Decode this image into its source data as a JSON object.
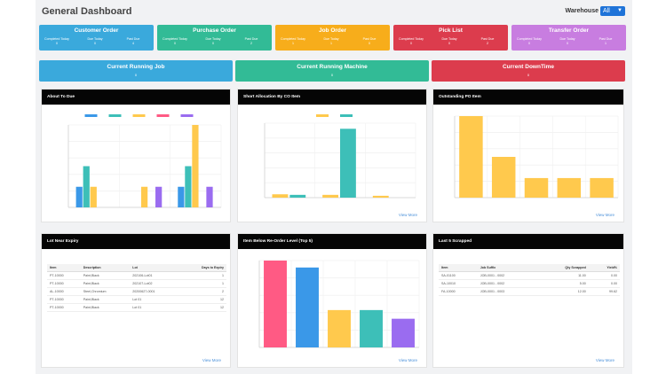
{
  "header": {
    "title": "General Dashboard",
    "warehouse_label": "Warehouse",
    "warehouse_value": "All"
  },
  "stat_cards": [
    {
      "title": "Customer Order",
      "color": "#3aa9dc",
      "subs": [
        "Completed Today",
        "Due Today",
        "Past Due"
      ],
      "values": [
        "0",
        "0",
        "4"
      ]
    },
    {
      "title": "Purchase Order",
      "color": "#32bb96",
      "subs": [
        "Completed Today",
        "Due Today",
        "Past Due"
      ],
      "values": [
        "0",
        "0",
        "2"
      ]
    },
    {
      "title": "Job Order",
      "color": "#f7ad1b",
      "subs": [
        "Completed Today",
        "Due Today",
        "Past Due"
      ],
      "values": [
        "1",
        "1",
        "0"
      ]
    },
    {
      "title": "Pick List",
      "color": "#dc3c4d",
      "subs": [
        "Completed Today",
        "Due Today",
        "Past Due"
      ],
      "values": [
        "0",
        "0",
        "2"
      ]
    },
    {
      "title": "Transfer Order",
      "color": "#c87de0",
      "subs": [
        "Completed Today",
        "Due Today",
        "Past Due"
      ],
      "values": [
        "0",
        "0",
        "1"
      ]
    }
  ],
  "running": [
    {
      "title": "Current Running Job",
      "value": "0",
      "color": "#3aa9dc"
    },
    {
      "title": "Current Running Machine",
      "value": "0",
      "color": "#32bb96"
    },
    {
      "title": "Current DownTime",
      "value": "0",
      "color": "#dc3c4d"
    }
  ],
  "panels": {
    "about_to_due": {
      "title": "About To Due"
    },
    "short_alloc": {
      "title": "Short Allocation By CO Item",
      "view_more": "View More"
    },
    "outstanding_po": {
      "title": "Outstanding PO Item",
      "view_more": "View More"
    },
    "lot_expiry": {
      "title": "Lot Near Expiry",
      "view_more": "View More"
    },
    "reorder": {
      "title": "Item Below Re-Order Level (Top 5)",
      "view_more": "View More"
    },
    "scrapped": {
      "title": "Last 5 Scrapped",
      "view_more": "View More"
    }
  },
  "lot_table": {
    "headers": [
      "Item",
      "Description",
      "Lot",
      "Days to Expiry"
    ],
    "rows": [
      [
        "PT-10000",
        "Paint,Black",
        "202106-Lot01",
        "1"
      ],
      [
        "PT-10000",
        "Paint,Black",
        "202107-Lot02",
        "1"
      ],
      [
        "AL-10000",
        "Steel,Chromium",
        "20200627-0001",
        "2"
      ],
      [
        "PT-10000",
        "Paint,Black",
        "Lot 01",
        "12"
      ],
      [
        "PT-10000",
        "Paint,Black",
        "Lot 01",
        "12"
      ]
    ]
  },
  "scrap_table": {
    "headers": [
      "Item",
      "Job Suffix",
      "Qty Scrapped",
      "Yield%"
    ],
    "rows": [
      [
        "SA-01100",
        "JOB-0001 - 0002",
        "11.00",
        "0.00"
      ],
      [
        "SA-10010",
        "JOB-0001 - 0002",
        "5.00",
        "0.00"
      ],
      [
        "FA-10000",
        "JOB-0001 - 0003",
        "12.00",
        "99.62"
      ]
    ]
  },
  "chart_data": [
    {
      "type": "bar",
      "title": "About To Due",
      "categories": [
        "",
        "",
        ""
      ],
      "series": [
        {
          "values": [
            1,
            0,
            1
          ],
          "color": "#3a98e8"
        },
        {
          "values": [
            2,
            0,
            2
          ],
          "color": "#3dbfb8"
        },
        {
          "values": [
            1,
            1,
            4
          ],
          "color": "#ffc94d"
        },
        {
          "values": [
            0,
            0,
            0
          ],
          "color": "#ff5a84"
        },
        {
          "values": [
            0,
            1,
            1
          ],
          "color": "#9a6cf0"
        }
      ],
      "ylim": [
        0,
        4
      ]
    },
    {
      "type": "bar",
      "title": "Short Allocation By CO Item",
      "categories": [
        "",
        "",
        ""
      ],
      "series": [
        {
          "values": [
            180,
            150,
            100
          ],
          "color": "#ffc94d"
        },
        {
          "values": [
            150,
            3700,
            0
          ],
          "color": "#3dbfb8"
        }
      ],
      "ylim": [
        0,
        4000
      ]
    },
    {
      "type": "bar",
      "title": "Outstanding PO Item",
      "categories": [
        "",
        "",
        "",
        "",
        ""
      ],
      "values": [
        250,
        125,
        60,
        60,
        60
      ],
      "color": "#ffc94d",
      "ylim": [
        0,
        250
      ]
    },
    {
      "type": "bar",
      "title": "Item Below Re-Order Level (Top 5)",
      "categories": [
        "",
        "",
        "",
        "",
        ""
      ],
      "values": [
        100,
        92,
        43,
        43,
        33
      ],
      "colors": [
        "#ff5a84",
        "#3a98e8",
        "#ffc94d",
        "#3dbfb8",
        "#9a6cf0"
      ],
      "ylim": [
        0,
        100
      ]
    }
  ]
}
